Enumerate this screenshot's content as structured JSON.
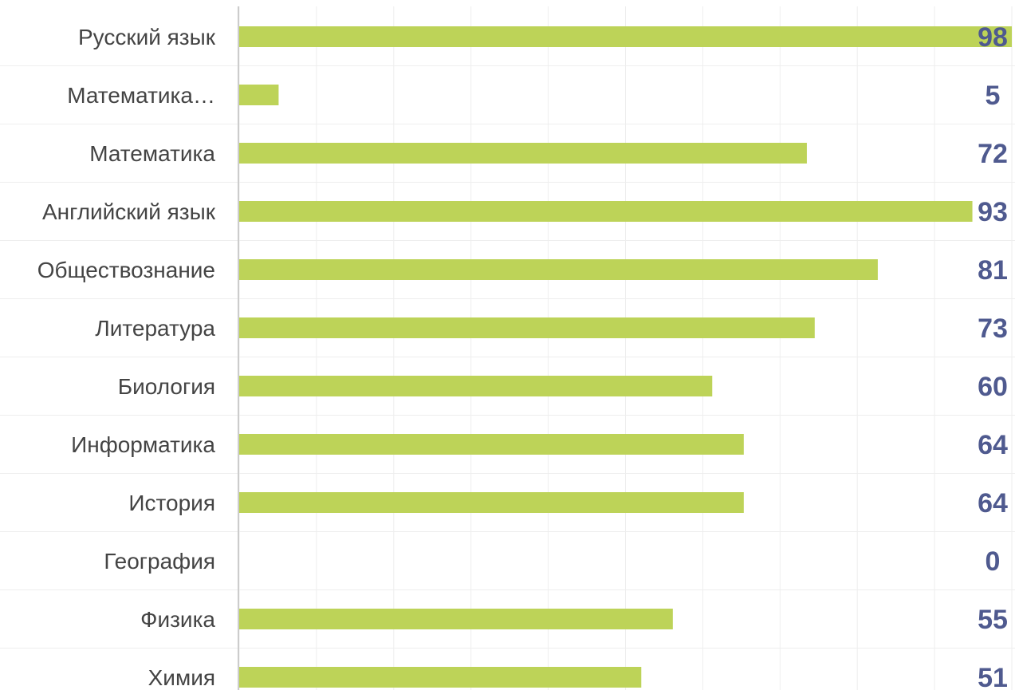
{
  "chart_data": {
    "type": "bar",
    "orientation": "horizontal",
    "categories": [
      "Русский язык",
      "Математика…",
      "Математика",
      "Английский язык",
      "Обществознание",
      "Литература",
      "Биология",
      "Информатика",
      "История",
      "География",
      "Физика",
      "Химия"
    ],
    "values": [
      98,
      5,
      72,
      93,
      81,
      73,
      60,
      64,
      64,
      0,
      55,
      51
    ],
    "xlim": [
      0,
      98
    ],
    "grid": true,
    "legend": "none",
    "colors": {
      "bar": "#BDD358",
      "value_label": "#4F5A8F",
      "category_label": "#444444",
      "grid": "#EEEEEE",
      "axis": "#CCCCCC"
    }
  }
}
